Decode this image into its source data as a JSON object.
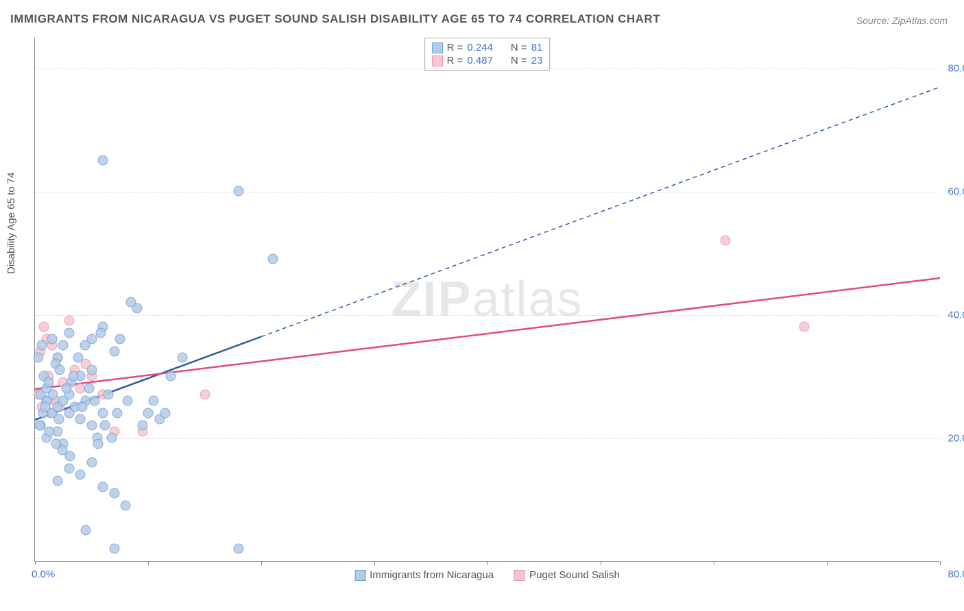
{
  "title": "IMMIGRANTS FROM NICARAGUA VS PUGET SOUND SALISH DISABILITY AGE 65 TO 74 CORRELATION CHART",
  "source": "Source: ZipAtlas.com",
  "ylabel": "Disability Age 65 to 74",
  "watermark_bold": "ZIP",
  "watermark_rest": "atlas",
  "chart": {
    "type": "scatter",
    "xlim": [
      0,
      80
    ],
    "ylim": [
      0,
      85
    ],
    "x_min_label": "0.0%",
    "x_max_label": "80.0%",
    "y_ticks": [
      20,
      40,
      60,
      80
    ],
    "y_tick_labels": [
      "20.0%",
      "40.0%",
      "60.0%",
      "80.0%"
    ],
    "x_tick_positions": [
      0,
      10,
      20,
      30,
      40,
      50,
      60,
      70,
      80
    ],
    "background_color": "#ffffff",
    "grid_color": "#dddddd",
    "axis_color": "#888888",
    "label_color": "#4472c4",
    "series": [
      {
        "name": "Immigrants from Nicaragua",
        "color_fill": "#b4cbe7",
        "color_border": "#6f9fd8",
        "r": 0.244,
        "n": 81,
        "marker_size": 15,
        "trend_color": "#2e5da3",
        "trend_style_solid_until_x": 20,
        "trend_width": 2.5,
        "trend": {
          "x1": 0,
          "y1": 23,
          "x2": 80,
          "y2": 77
        },
        "points": [
          [
            1,
            26
          ],
          [
            1.5,
            24
          ],
          [
            0.5,
            27
          ],
          [
            2,
            25
          ],
          [
            1,
            28
          ],
          [
            2.5,
            26
          ],
          [
            0.8,
            30
          ],
          [
            1.2,
            29
          ],
          [
            0.3,
            33
          ],
          [
            0.6,
            35
          ],
          [
            1.5,
            36
          ],
          [
            3,
            27
          ],
          [
            3.5,
            25
          ],
          [
            4,
            23
          ],
          [
            2,
            21
          ],
          [
            1,
            20
          ],
          [
            0.5,
            22
          ],
          [
            2.5,
            19
          ],
          [
            3,
            24
          ],
          [
            4.5,
            26
          ],
          [
            5,
            22
          ],
          [
            5.5,
            20
          ],
          [
            6,
            24
          ],
          [
            6.5,
            27
          ],
          [
            7,
            34
          ],
          [
            7.5,
            36
          ],
          [
            3,
            37
          ],
          [
            4,
            30
          ],
          [
            5,
            31
          ],
          [
            2,
            33
          ],
          [
            2.5,
            35
          ],
          [
            6,
            12
          ],
          [
            7,
            11
          ],
          [
            4,
            14
          ],
          [
            3,
            15
          ],
          [
            5,
            16
          ],
          [
            2,
            13
          ],
          [
            4.5,
            5
          ],
          [
            7,
            2
          ],
          [
            18,
            2
          ],
          [
            8,
            9
          ],
          [
            9,
            41
          ],
          [
            8.5,
            42
          ],
          [
            10,
            24
          ],
          [
            10.5,
            26
          ],
          [
            11,
            23
          ],
          [
            12,
            30
          ],
          [
            6,
            65
          ],
          [
            18,
            60
          ],
          [
            21,
            49
          ],
          [
            5,
            36
          ],
          [
            6,
            38
          ],
          [
            1.8,
            32
          ],
          [
            2.2,
            31
          ],
          [
            3.2,
            29
          ],
          [
            0.7,
            24
          ],
          [
            1.1,
            26
          ],
          [
            1.6,
            27
          ],
          [
            0.9,
            25
          ],
          [
            2.1,
            23
          ],
          [
            2.8,
            28
          ],
          [
            3.4,
            30
          ],
          [
            0.4,
            22
          ],
          [
            1.3,
            21
          ],
          [
            1.9,
            19
          ],
          [
            4.2,
            25
          ],
          [
            4.8,
            28
          ],
          [
            5.3,
            26
          ],
          [
            6.2,
            22
          ],
          [
            6.8,
            20
          ],
          [
            7.3,
            24
          ],
          [
            3.8,
            33
          ],
          [
            4.4,
            35
          ],
          [
            5.8,
            37
          ],
          [
            2.4,
            18
          ],
          [
            3.1,
            17
          ],
          [
            5.6,
            19
          ],
          [
            8.2,
            26
          ],
          [
            9.5,
            22
          ],
          [
            11.5,
            24
          ],
          [
            13,
            33
          ]
        ]
      },
      {
        "name": "Puget Sound Salish",
        "color_fill": "#f5c6d0",
        "color_border": "#e895ab",
        "r": 0.487,
        "n": 23,
        "marker_size": 15,
        "trend_color": "#e14b7a",
        "trend_width": 2.5,
        "trend": {
          "x1": 0,
          "y1": 28,
          "x2": 80,
          "y2": 46
        },
        "points": [
          [
            0.5,
            34
          ],
          [
            1,
            36
          ],
          [
            0.8,
            38
          ],
          [
            1.5,
            35
          ],
          [
            2,
            33
          ],
          [
            1.2,
            30
          ],
          [
            2.5,
            29
          ],
          [
            0.3,
            27
          ],
          [
            1.8,
            26
          ],
          [
            3.5,
            31
          ],
          [
            4,
            28
          ],
          [
            2.2,
            25
          ],
          [
            5,
            30
          ],
          [
            6,
            27
          ],
          [
            9.5,
            21
          ],
          [
            7,
            21
          ],
          [
            15,
            27
          ],
          [
            3,
            39
          ],
          [
            0.6,
            25
          ],
          [
            1.4,
            24
          ],
          [
            61,
            52
          ],
          [
            68,
            38
          ],
          [
            4.5,
            32
          ]
        ]
      }
    ]
  },
  "legend_top": {
    "rows": [
      {
        "swatch_fill": "#b4cbe7",
        "swatch_border": "#6f9fd8",
        "r": "0.244",
        "n": "81"
      },
      {
        "swatch_fill": "#f5c6d0",
        "swatch_border": "#e895ab",
        "r": "0.487",
        "n": "23"
      }
    ]
  },
  "legend_bottom": [
    {
      "swatch_fill": "#b4cbe7",
      "swatch_border": "#6f9fd8",
      "label": "Immigrants from Nicaragua"
    },
    {
      "swatch_fill": "#f5c6d0",
      "swatch_border": "#e895ab",
      "label": "Puget Sound Salish"
    }
  ]
}
